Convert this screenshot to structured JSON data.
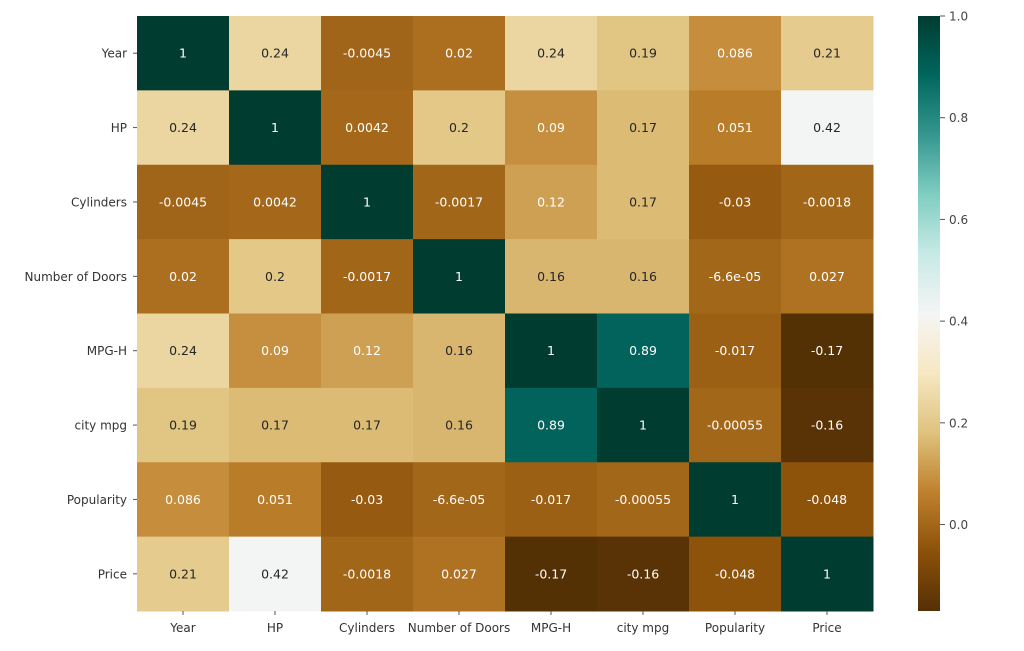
{
  "chart_data": {
    "type": "heatmap",
    "title": "",
    "xlabel": "",
    "ylabel": "",
    "x_labels": [
      "Year",
      "HP",
      "Cylinders",
      "Number of Doors",
      "MPG-H",
      "city mpg",
      "Popularity",
      "Price"
    ],
    "y_labels": [
      "Year",
      "HP",
      "Cylinders",
      "Number of Doors",
      "MPG-H",
      "city mpg",
      "Popularity",
      "Price"
    ],
    "values": [
      [
        1,
        0.24,
        -0.0045,
        0.02,
        0.24,
        0.19,
        0.086,
        0.21
      ],
      [
        0.24,
        1,
        0.0042,
        0.2,
        0.09,
        0.17,
        0.051,
        0.42
      ],
      [
        -0.0045,
        0.0042,
        1,
        -0.0017,
        0.12,
        0.17,
        -0.03,
        -0.0018
      ],
      [
        0.02,
        0.2,
        -0.0017,
        1,
        0.16,
        0.16,
        -6.6e-05,
        0.027
      ],
      [
        0.24,
        0.09,
        0.12,
        0.16,
        1,
        0.89,
        -0.017,
        -0.17
      ],
      [
        0.19,
        0.17,
        0.17,
        0.16,
        0.89,
        1,
        -0.00055,
        -0.16
      ],
      [
        0.086,
        0.051,
        -0.03,
        -6.6e-05,
        -0.017,
        -0.00055,
        1,
        -0.048
      ],
      [
        0.21,
        0.42,
        -0.0018,
        0.027,
        -0.17,
        -0.16,
        -0.048,
        1
      ]
    ],
    "annotations": [
      [
        "1",
        "0.24",
        "-0.0045",
        "0.02",
        "0.24",
        "0.19",
        "0.086",
        "0.21"
      ],
      [
        "0.24",
        "1",
        "0.0042",
        "0.2",
        "0.09",
        "0.17",
        "0.051",
        "0.42"
      ],
      [
        "-0.0045",
        "0.0042",
        "1",
        "-0.0017",
        "0.12",
        "0.17",
        "-0.03",
        "-0.0018"
      ],
      [
        "0.02",
        "0.2",
        "-0.0017",
        "1",
        "0.16",
        "0.16",
        "-6.6e-05",
        "0.027"
      ],
      [
        "0.24",
        "0.09",
        "0.12",
        "0.16",
        "1",
        "0.89",
        "-0.017",
        "-0.17"
      ],
      [
        "0.19",
        "0.17",
        "0.17",
        "0.16",
        "0.89",
        "1",
        "-0.00055",
        "-0.16"
      ],
      [
        "0.086",
        "0.051",
        "-0.03",
        "-6.6e-05",
        "-0.017",
        "-0.00055",
        "1",
        "-0.048"
      ],
      [
        "0.21",
        "0.42",
        "-0.0018",
        "0.027",
        "-0.17",
        "-0.16",
        "-0.048",
        "1"
      ]
    ],
    "colormap": "BrBG",
    "colormap_stops": [
      "#543005",
      "#8c510a",
      "#bf812d",
      "#dfc27d",
      "#f6e8c3",
      "#f5f5f5",
      "#c7eae5",
      "#80cdc1",
      "#35978f",
      "#01665e",
      "#003c30"
    ],
    "vmin": -0.17,
    "vmax": 1.0,
    "colorbar_ticks": [
      "0.0",
      "0.2",
      "0.4",
      "0.6",
      "0.8",
      "1.0"
    ],
    "colorbar_tick_values": [
      0.0,
      0.2,
      0.4,
      0.6,
      0.8,
      1.0
    ],
    "legend_placement": "right",
    "grid": false
  }
}
